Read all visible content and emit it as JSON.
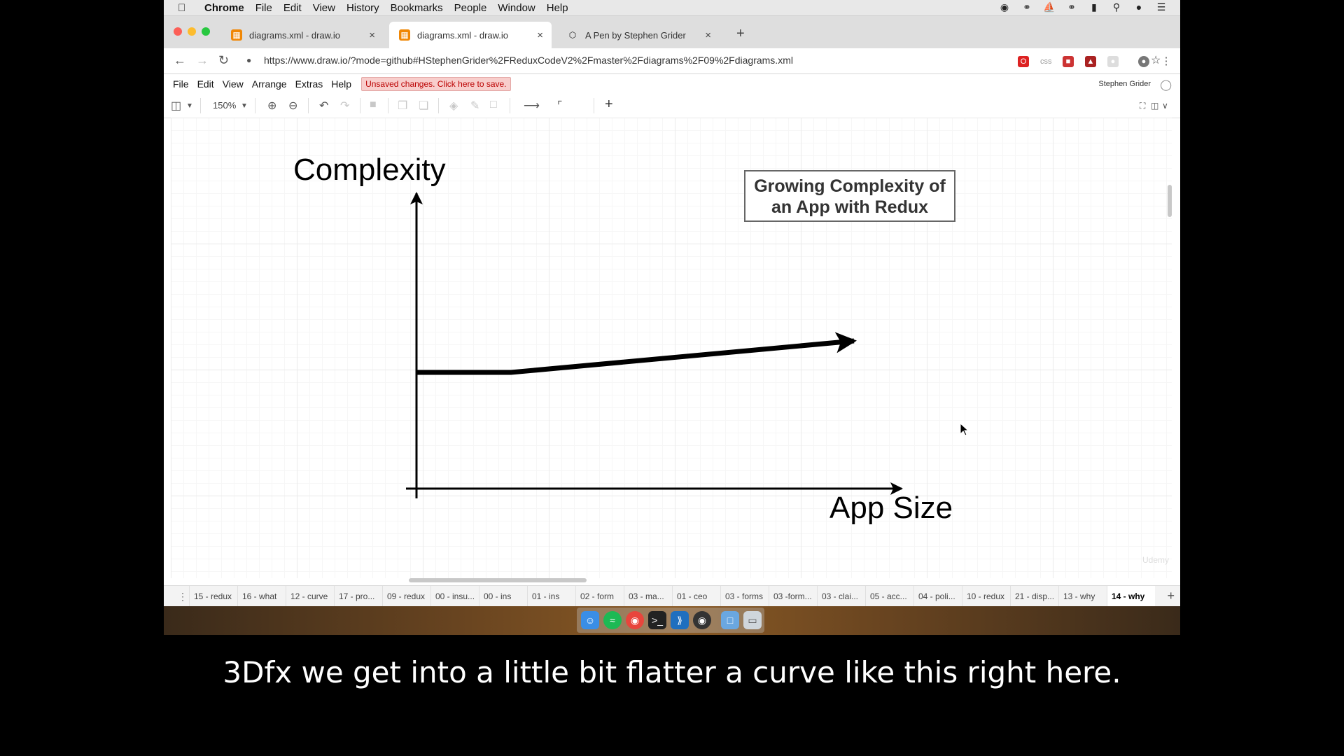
{
  "menubar": {
    "app": "Chrome",
    "items": [
      "File",
      "Edit",
      "View",
      "History",
      "Bookmarks",
      "People",
      "Window",
      "Help"
    ]
  },
  "tabs": [
    {
      "title": "diagrams.xml - draw.io",
      "favicon": "drawio-icon"
    },
    {
      "title": "diagrams.xml - draw.io",
      "favicon": "drawio-icon"
    },
    {
      "title": "A Pen by Stephen Grider",
      "favicon": "codepen-icon"
    }
  ],
  "address": {
    "url": "https://www.draw.io/?mode=github#HStephenGrider%2FReduxCodeV2%2Fmaster%2Fdiagrams%2F09%2Fdiagrams.xml"
  },
  "drawio_menu": {
    "items": [
      "File",
      "Edit",
      "View",
      "Arrange",
      "Extras",
      "Help"
    ],
    "unsaved": "Unsaved changes. Click here to save.",
    "user": "Stephen Grider"
  },
  "toolbar": {
    "zoom": "150%"
  },
  "diagram": {
    "title_line1": "Growing Complexity of",
    "title_line2": "an App with Redux",
    "y_axis_label": "Complexity",
    "x_axis_label": "App Size"
  },
  "watermark": "Udemy",
  "pages": [
    "15 - redux",
    "16 - what",
    "12 - curve",
    "17 - pro...",
    "09 - redux",
    "00 - insu...",
    "00 - ins",
    "01 - ins",
    "02 - form",
    "03 - ma...",
    "01 - ceo",
    "03 - forms",
    "03 -form...",
    "03 - clai...",
    "05 - acc...",
    "04 - poli...",
    "10 - redux",
    "21 - disp...",
    "13 - why",
    "14 - why"
  ],
  "active_page": "14 - why",
  "subtitle": "3Dfx we get into a little bit flatter a curve like this right here."
}
